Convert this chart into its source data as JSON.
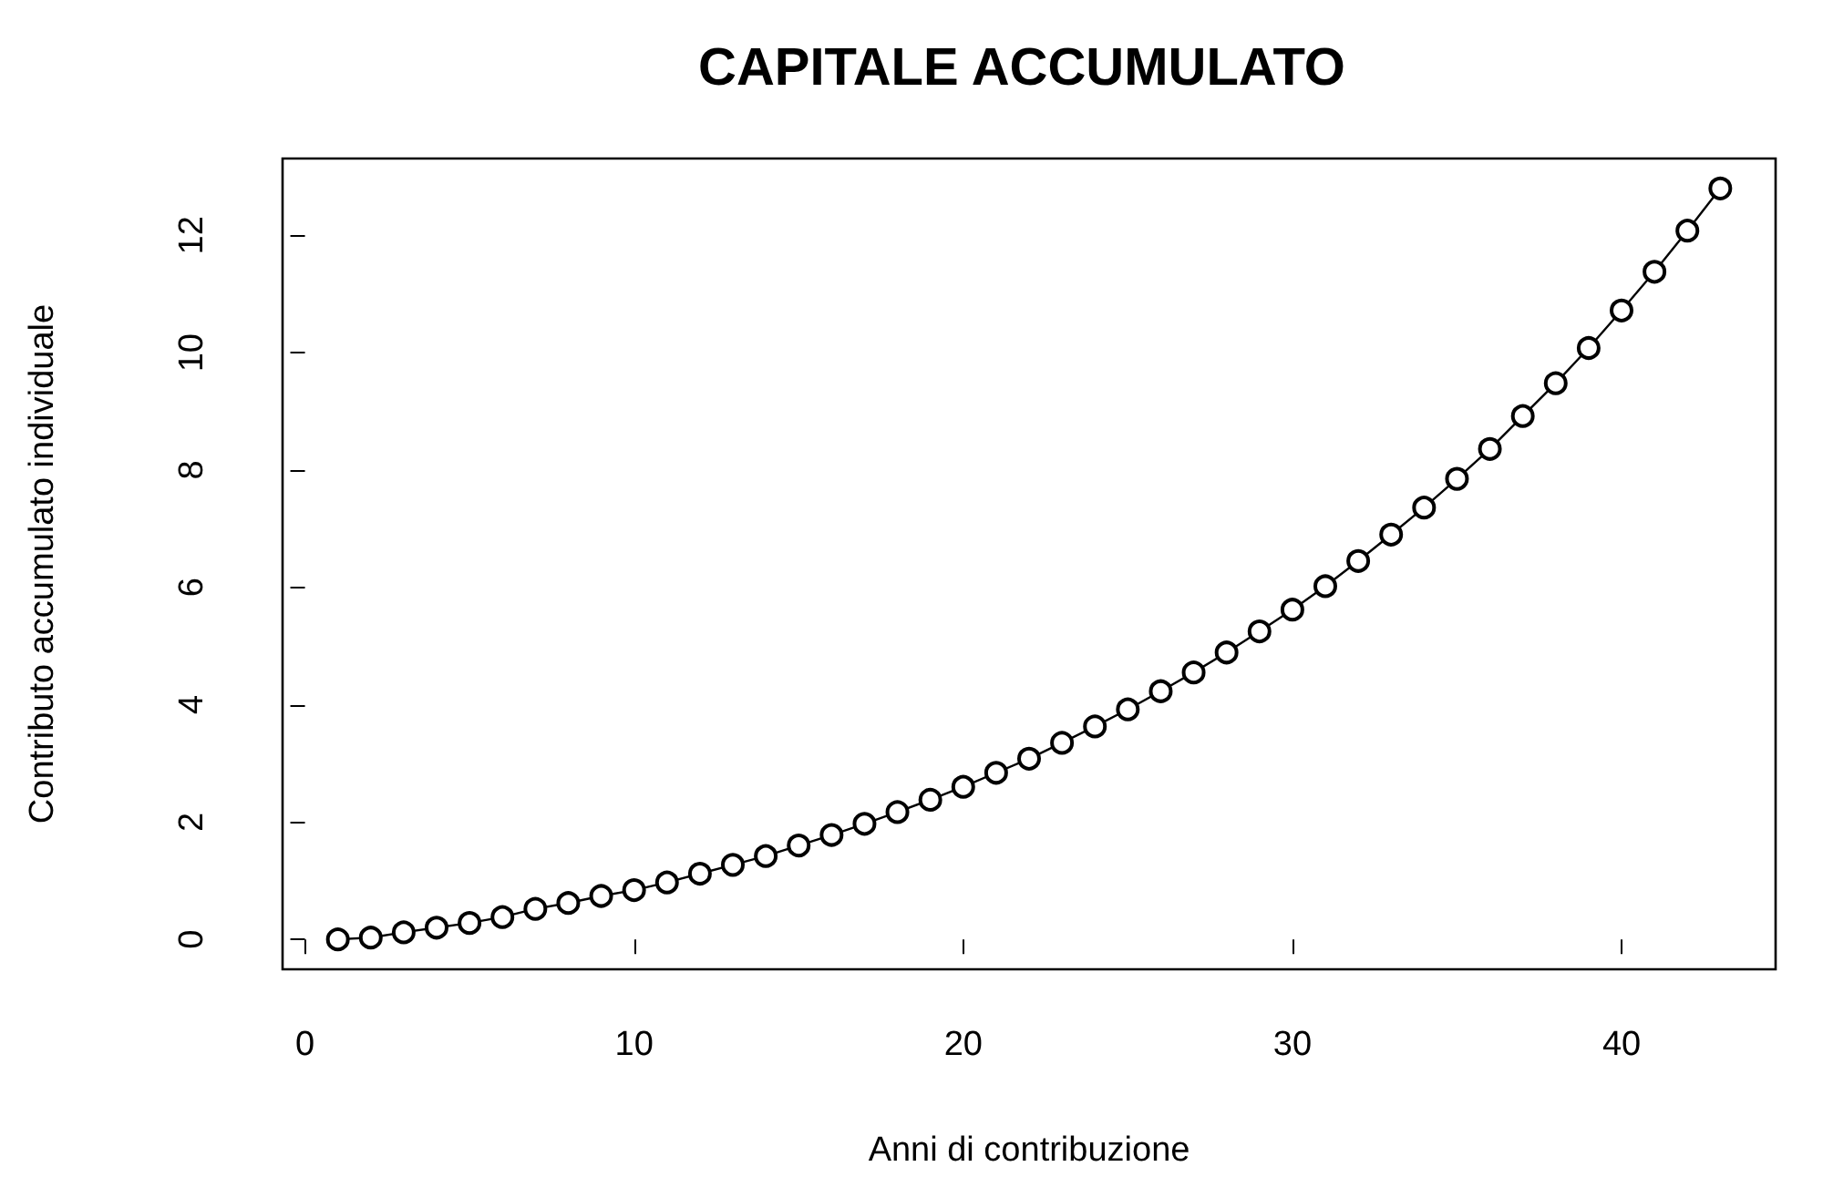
{
  "chart_data": {
    "type": "line",
    "title": "CAPITALE ACCUMULATO",
    "xlabel": "Anni di contribuzione",
    "ylabel": "Contributo accumulato individuale",
    "x": [
      1,
      2,
      3,
      4,
      5,
      6,
      7,
      8,
      9,
      10,
      11,
      12,
      13,
      14,
      15,
      16,
      17,
      18,
      19,
      20,
      21,
      22,
      23,
      24,
      25,
      26,
      27,
      28,
      29,
      30,
      31,
      32,
      33,
      34,
      35,
      36,
      37,
      38,
      39,
      40,
      41,
      42,
      43
    ],
    "series": [
      {
        "color": "#000000",
        "values": [
          0,
          0.03,
          0.12,
          0.2,
          0.28,
          0.38,
          0.52,
          0.62,
          0.74,
          0.84,
          0.97,
          1.12,
          1.27,
          1.42,
          1.6,
          1.78,
          1.97,
          2.17,
          2.38,
          2.6,
          2.84,
          3.08,
          3.35,
          3.63,
          3.92,
          4.23,
          4.55,
          4.89,
          5.25,
          5.62,
          6.02,
          6.45,
          6.9,
          7.36,
          7.85,
          8.36,
          8.92,
          9.48,
          10.08,
          10.72,
          11.38,
          12.08,
          12.8
        ]
      }
    ],
    "xlim": [
      -0.68,
      44.68
    ],
    "xticks": [
      0,
      10,
      20,
      30,
      40
    ],
    "ylim": [
      -0.51,
      13.31
    ],
    "yticks": [
      0,
      2,
      4,
      6,
      8,
      10,
      12
    ],
    "marker": "circle",
    "line_style": "solid",
    "grid": false
  }
}
